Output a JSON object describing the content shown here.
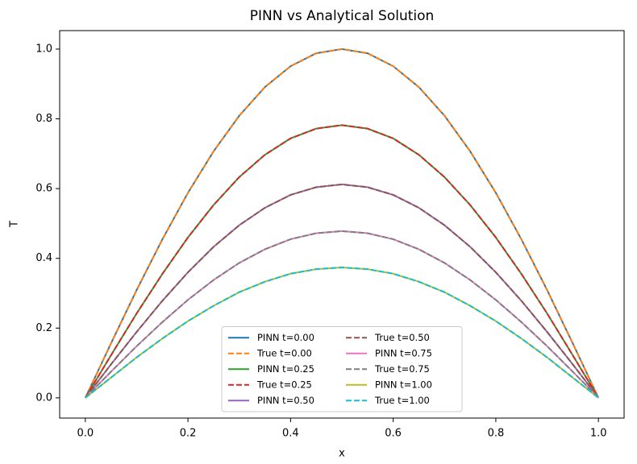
{
  "chart_data": {
    "type": "line",
    "title": "PINN vs Analytical Solution",
    "x_label": "x",
    "y_label": "T",
    "x": [
      0,
      0.05,
      0.1,
      0.15,
      0.2,
      0.25,
      0.3,
      0.35,
      0.4,
      0.45,
      0.5,
      0.55,
      0.6,
      0.65,
      0.7,
      0.75,
      0.8,
      0.85,
      0.9,
      0.95,
      1
    ],
    "series": [
      {
        "name": "PINN t=0.00",
        "color": "#1f77b4",
        "linestyle": "solid",
        "values": [
          0,
          0.156,
          0.309,
          0.454,
          0.588,
          0.707,
          0.809,
          0.891,
          0.951,
          0.988,
          1,
          0.988,
          0.951,
          0.891,
          0.809,
          0.707,
          0.588,
          0.454,
          0.309,
          0.156,
          0
        ]
      },
      {
        "name": "True t=0.00",
        "color": "#ff7f0e",
        "linestyle": "dashed",
        "values": [
          0,
          0.156,
          0.309,
          0.454,
          0.588,
          0.707,
          0.809,
          0.891,
          0.951,
          0.988,
          1,
          0.988,
          0.951,
          0.891,
          0.809,
          0.707,
          0.588,
          0.454,
          0.309,
          0.156,
          0
        ]
      },
      {
        "name": "PINN t=0.25",
        "color": "#2ca02c",
        "linestyle": "solid",
        "values": [
          0,
          0.122,
          0.242,
          0.355,
          0.46,
          0.553,
          0.633,
          0.697,
          0.744,
          0.772,
          0.782,
          0.772,
          0.744,
          0.697,
          0.633,
          0.553,
          0.46,
          0.355,
          0.242,
          0.122,
          0
        ]
      },
      {
        "name": "True t=0.25",
        "color": "#d62728",
        "linestyle": "dashed",
        "values": [
          0,
          0.122,
          0.242,
          0.355,
          0.46,
          0.553,
          0.633,
          0.697,
          0.744,
          0.772,
          0.782,
          0.772,
          0.744,
          0.697,
          0.633,
          0.553,
          0.46,
          0.355,
          0.242,
          0.122,
          0
        ]
      },
      {
        "name": "PINN t=0.50",
        "color": "#9467bd",
        "linestyle": "solid",
        "values": [
          0,
          0.096,
          0.189,
          0.278,
          0.36,
          0.433,
          0.495,
          0.545,
          0.582,
          0.604,
          0.612,
          0.604,
          0.582,
          0.545,
          0.495,
          0.433,
          0.36,
          0.278,
          0.189,
          0.096,
          0
        ]
      },
      {
        "name": "True t=0.50",
        "color": "#8c564b",
        "linestyle": "dashed",
        "values": [
          0,
          0.096,
          0.189,
          0.278,
          0.36,
          0.433,
          0.495,
          0.545,
          0.582,
          0.604,
          0.612,
          0.604,
          0.582,
          0.545,
          0.495,
          0.433,
          0.36,
          0.278,
          0.189,
          0.096,
          0
        ]
      },
      {
        "name": "PINN t=0.75",
        "color": "#e377c2",
        "linestyle": "solid",
        "values": [
          0,
          0.075,
          0.148,
          0.217,
          0.281,
          0.338,
          0.387,
          0.426,
          0.455,
          0.472,
          0.478,
          0.472,
          0.455,
          0.426,
          0.387,
          0.338,
          0.281,
          0.217,
          0.148,
          0.075,
          0
        ]
      },
      {
        "name": "True t=0.75",
        "color": "#7f7f7f",
        "linestyle": "dashed",
        "values": [
          0,
          0.075,
          0.148,
          0.217,
          0.281,
          0.338,
          0.387,
          0.426,
          0.455,
          0.472,
          0.478,
          0.472,
          0.455,
          0.426,
          0.387,
          0.338,
          0.281,
          0.217,
          0.148,
          0.075,
          0
        ]
      },
      {
        "name": "PINN t=1.00",
        "color": "#bcbd22",
        "linestyle": "solid",
        "values": [
          0,
          0.058,
          0.116,
          0.17,
          0.22,
          0.264,
          0.303,
          0.333,
          0.356,
          0.369,
          0.374,
          0.369,
          0.356,
          0.333,
          0.303,
          0.264,
          0.22,
          0.17,
          0.116,
          0.058,
          0
        ]
      },
      {
        "name": "True t=1.00",
        "color": "#17becf",
        "linestyle": "dashed",
        "values": [
          0,
          0.058,
          0.116,
          0.17,
          0.22,
          0.264,
          0.303,
          0.333,
          0.356,
          0.369,
          0.374,
          0.369,
          0.356,
          0.333,
          0.303,
          0.264,
          0.22,
          0.17,
          0.116,
          0.058,
          0
        ]
      }
    ],
    "xlim": [
      -0.05,
      1.05
    ],
    "ylim": [
      -0.058,
      1.053
    ],
    "xticks": [
      {
        "value": 0,
        "label": "0.0"
      },
      0.2,
      0.4,
      0.6,
      0.8,
      {
        "value": 1,
        "label": "1.0"
      }
    ],
    "yticks": [
      {
        "value": 0,
        "label": "0.0"
      },
      0.2,
      0.4,
      0.6,
      0.8,
      {
        "value": 1,
        "label": "1.0"
      }
    ],
    "legend": "lower center",
    "legend_columns": 2
  }
}
